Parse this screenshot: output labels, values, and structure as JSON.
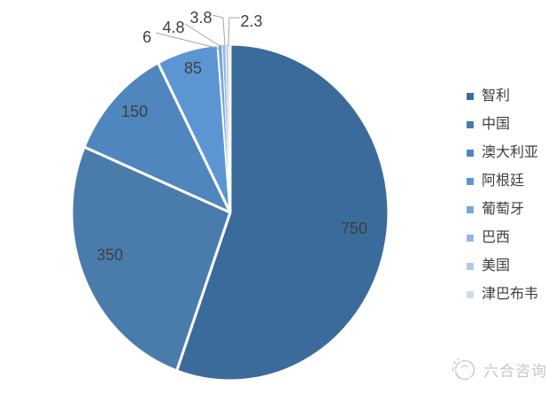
{
  "chart_data": {
    "type": "pie",
    "title": "",
    "categories": [
      "智利",
      "中国",
      "澳大利亚",
      "阿根廷",
      "葡萄牙",
      "巴西",
      "美国",
      "津巴布韦"
    ],
    "values": [
      750,
      350,
      150,
      85,
      6,
      4.8,
      3.8,
      2.3
    ],
    "data_labels": [
      "750",
      "350",
      "150",
      "85",
      "6",
      "4.8",
      "3.8",
      "2.3"
    ],
    "colors": [
      "#3a6b9b",
      "#4a7cab",
      "#4e86bd",
      "#5b95d2",
      "#7aa5d8",
      "#95b7e0",
      "#b0cae9",
      "#cedcf1"
    ],
    "start_angle_deg": 0,
    "direction": "clockwise",
    "legend_position": "right",
    "label_color": "#3f3f3f",
    "slice_border_color": "#ffffff",
    "leader_line_color": "#a6a6a6"
  },
  "watermark": {
    "text": "六合咨询"
  }
}
